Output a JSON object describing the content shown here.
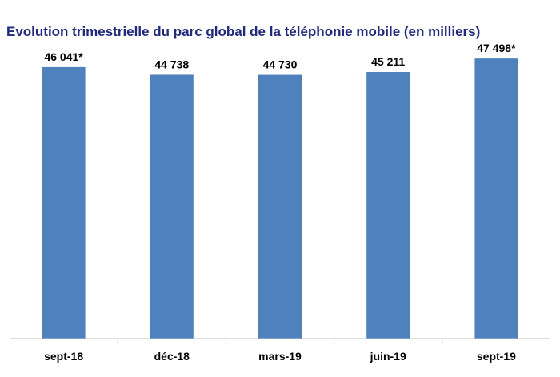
{
  "chart_data": {
    "type": "bar",
    "title": "Evolution trimestrielle du parc global de la téléphonie mobile (en milliers)",
    "categories": [
      "sept-18",
      "déc-18",
      "mars-19",
      "juin-19",
      "sept-19"
    ],
    "values": [
      46041,
      44738,
      44730,
      45211,
      47498
    ],
    "data_labels": [
      "46 041*",
      "44 738",
      "44 730",
      "45 211",
      "47 498*"
    ],
    "ylim": [
      0,
      52000
    ],
    "grid": false,
    "colors": {
      "bar": "#4f81bd",
      "title": "#1f2a7a"
    }
  }
}
